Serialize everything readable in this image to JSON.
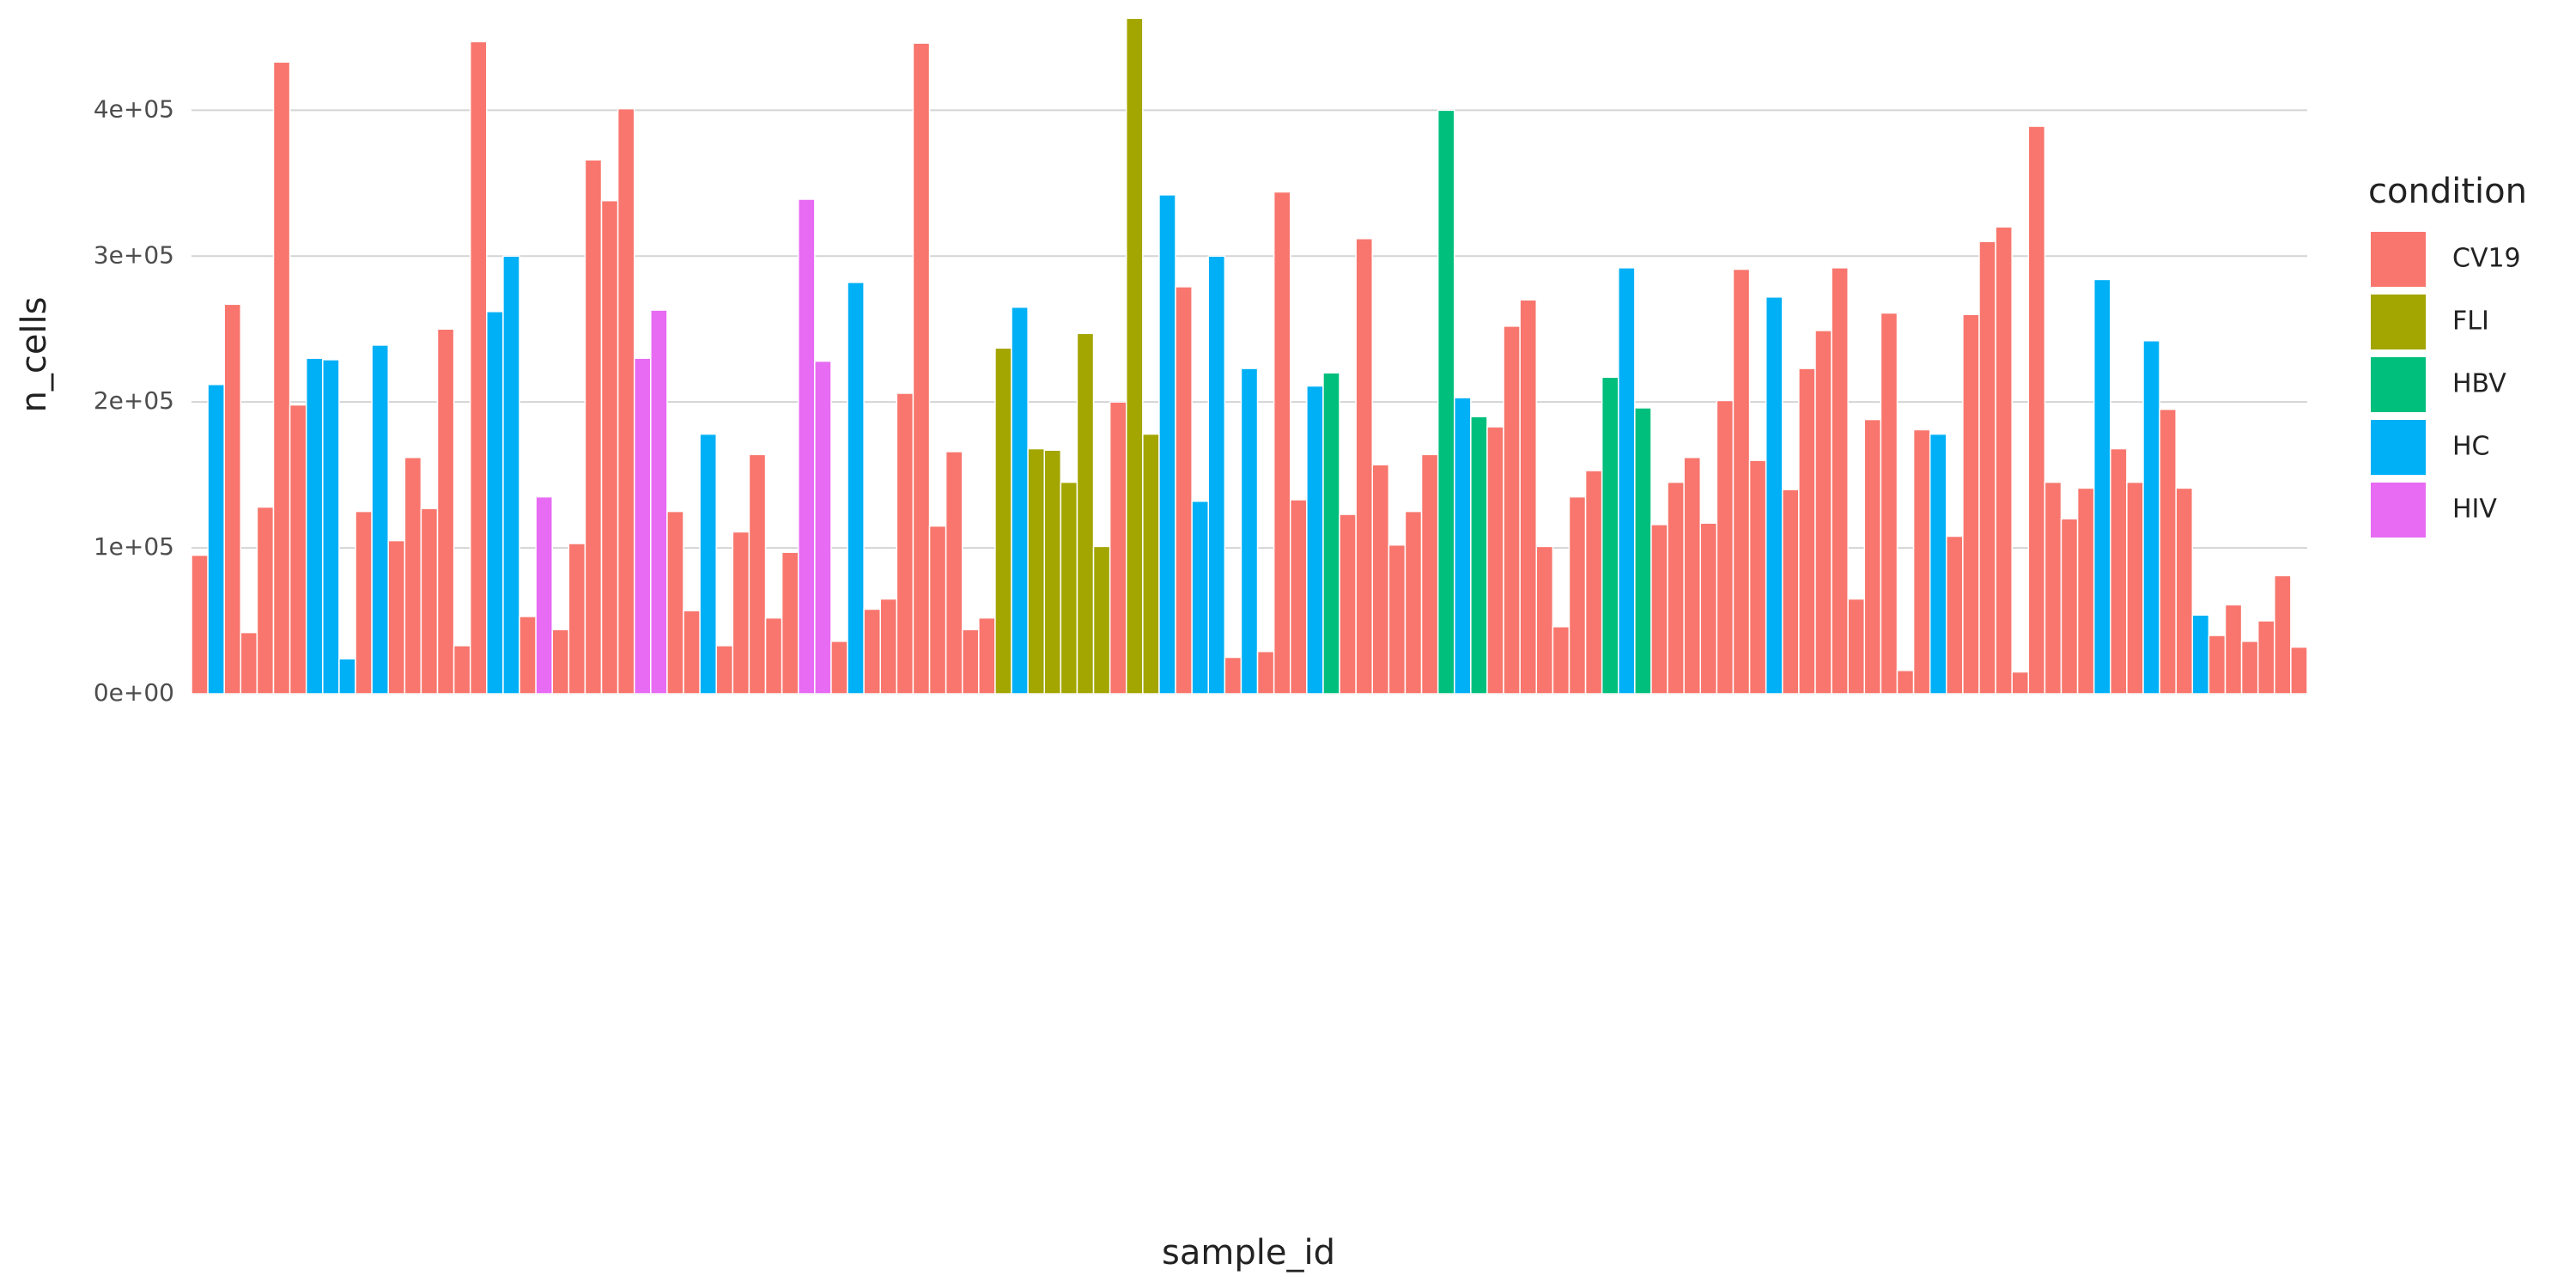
{
  "chart_data": {
    "type": "bar",
    "x_label": "sample_id",
    "y_label": "n_cells",
    "categories": [
      null,
      null,
      null,
      null,
      null,
      null,
      null,
      null,
      null,
      null,
      null,
      null,
      null,
      null,
      null,
      null,
      null,
      null,
      null,
      null,
      null,
      null,
      null,
      null,
      null,
      null,
      null,
      null,
      null,
      null,
      null,
      null,
      null,
      null,
      null,
      null,
      null,
      null,
      null,
      null,
      null,
      null,
      null,
      null,
      null,
      null,
      null,
      null,
      null,
      null,
      null,
      null,
      null,
      null,
      null,
      null,
      null,
      null,
      null,
      null,
      null,
      null,
      null,
      null,
      null,
      null,
      null,
      null,
      null,
      null,
      null,
      null,
      null,
      null,
      null,
      null,
      null,
      null,
      null,
      null,
      null,
      null,
      null,
      null,
      null,
      null,
      null,
      null,
      null,
      null,
      null,
      null,
      null,
      null,
      null,
      null,
      null,
      null,
      null,
      null,
      null,
      null,
      null,
      null,
      null,
      null,
      null,
      null,
      null,
      null,
      null,
      null,
      null,
      null,
      null,
      null,
      null,
      null,
      null,
      null,
      null,
      null,
      null,
      null,
      null,
      null,
      null,
      null,
      null
    ],
    "values": [
      95000,
      212000,
      267000,
      42000,
      128000,
      433000,
      198000,
      230000,
      229000,
      24000,
      125000,
      239000,
      105000,
      162000,
      127000,
      250000,
      33000,
      447000,
      262000,
      300000,
      53000,
      135000,
      44000,
      103000,
      366000,
      338000,
      401000,
      230000,
      263000,
      125000,
      57000,
      178000,
      33000,
      111000,
      164000,
      52000,
      97000,
      339000,
      228000,
      36000,
      282000,
      58000,
      65000,
      206000,
      446000,
      115000,
      166000,
      44000,
      52000,
      237000,
      265000,
      168000,
      167000,
      145000,
      247000,
      101000,
      200000,
      463000,
      178000,
      342000,
      279000,
      132000,
      300000,
      25000,
      223000,
      29000,
      344000,
      133000,
      211000,
      220000,
      123000,
      312000,
      157000,
      102000,
      125000,
      164000,
      400000,
      203000,
      190000,
      183000,
      252000,
      270000,
      101000,
      46000,
      135000,
      153000,
      217000,
      292000,
      196000,
      116000,
      145000,
      162000,
      117000,
      201000,
      291000,
      160000,
      272000,
      140000,
      223000,
      249000,
      292000,
      65000,
      188000,
      261000,
      16000,
      181000,
      178000,
      108000,
      260000,
      310000,
      320000,
      15000,
      389000,
      145000,
      120000,
      141000,
      284000,
      168000,
      145000,
      242000,
      195000,
      141000,
      54000,
      40000,
      61000,
      36000,
      50000,
      81000,
      32000
    ],
    "condition": [
      "CV19",
      "HC",
      "CV19",
      "CV19",
      "CV19",
      "CV19",
      "CV19",
      "HC",
      "HC",
      "HC",
      "CV19",
      "HC",
      "CV19",
      "CV19",
      "CV19",
      "CV19",
      "CV19",
      "CV19",
      "HC",
      "HC",
      "CV19",
      "HIV",
      "CV19",
      "CV19",
      "CV19",
      "CV19",
      "CV19",
      "HIV",
      "HIV",
      "CV19",
      "CV19",
      "HC",
      "CV19",
      "CV19",
      "CV19",
      "CV19",
      "CV19",
      "HIV",
      "HIV",
      "CV19",
      "HC",
      "CV19",
      "CV19",
      "CV19",
      "CV19",
      "CV19",
      "CV19",
      "CV19",
      "CV19",
      "FLI",
      "HC",
      "FLI",
      "FLI",
      "FLI",
      "FLI",
      "FLI",
      "CV19",
      "FLI",
      "FLI",
      "HC",
      "CV19",
      "HC",
      "HC",
      "CV19",
      "HC",
      "CV19",
      "CV19",
      "CV19",
      "HC",
      "HBV",
      "CV19",
      "CV19",
      "CV19",
      "CV19",
      "CV19",
      "CV19",
      "HBV",
      "HC",
      "HBV",
      "CV19",
      "CV19",
      "CV19",
      "CV19",
      "CV19",
      "CV19",
      "CV19",
      "HBV",
      "HC",
      "HBV",
      "CV19",
      "CV19",
      "CV19",
      "CV19",
      "CV19",
      "CV19",
      "CV19",
      "HC",
      "CV19",
      "CV19",
      "CV19",
      "CV19",
      "CV19",
      "CV19",
      "CV19",
      "CV19",
      "CV19",
      "HC",
      "CV19",
      "CV19",
      "CV19",
      "CV19",
      "CV19",
      "CV19",
      "CV19",
      "CV19",
      "CV19",
      "HC",
      "CV19",
      "CV19",
      "HC",
      "CV19",
      "CV19",
      "HC",
      "CV19",
      "CV19",
      "CV19",
      "CV19",
      "CV19",
      "CV19"
    ],
    "legend": {
      "title": "condition",
      "position": "right",
      "entries": [
        {
          "name": "CV19",
          "color": "#f8766d"
        },
        {
          "name": "FLI",
          "color": "#a3a500"
        },
        {
          "name": "HBV",
          "color": "#00bf7d"
        },
        {
          "name": "HC",
          "color": "#00b0f6"
        },
        {
          "name": "HIV",
          "color": "#e76bf3"
        }
      ]
    },
    "ylim": [
      0,
      462000
    ],
    "yticks": [
      {
        "value": 0,
        "label": "0e+00"
      },
      {
        "value": 100000,
        "label": "1e+05"
      },
      {
        "value": 200000,
        "label": "2e+05"
      },
      {
        "value": 300000,
        "label": "3e+05"
      },
      {
        "value": 400000,
        "label": "4e+05"
      }
    ],
    "grid": true
  }
}
